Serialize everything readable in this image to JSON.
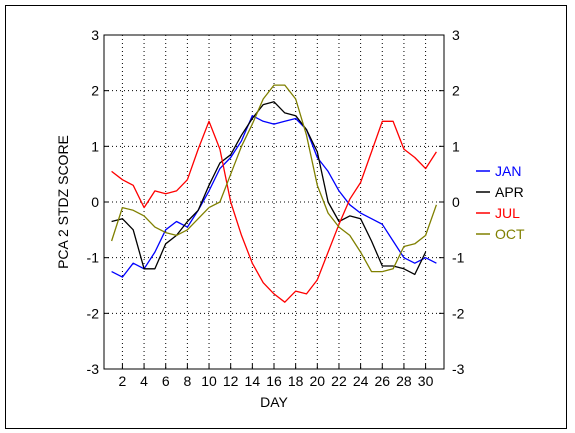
{
  "chart_data": {
    "type": "line",
    "title": "",
    "xlabel": "DAY",
    "ylabel": "PCA 2 STDZ SCORE",
    "xlim": [
      0.3,
      31.7
    ],
    "ylim": [
      -3,
      3
    ],
    "x_ticks": [
      2,
      4,
      6,
      8,
      10,
      12,
      14,
      16,
      18,
      20,
      22,
      24,
      26,
      28,
      30
    ],
    "y_ticks": [
      -3,
      -2,
      -1,
      0,
      1,
      2,
      3
    ],
    "right_axis_ticks": [
      -3,
      -2,
      -1,
      0,
      1,
      2,
      3
    ],
    "grid": true,
    "legend_position": "right",
    "x": [
      1,
      2,
      3,
      4,
      5,
      6,
      7,
      8,
      9,
      10,
      11,
      12,
      13,
      14,
      15,
      16,
      17,
      18,
      19,
      20,
      21,
      22,
      23,
      24,
      25,
      26,
      27,
      28,
      29,
      30,
      31
    ],
    "series": [
      {
        "name": "JAN",
        "color": "#0000ff",
        "values": [
          -1.25,
          -1.35,
          -1.1,
          -1.2,
          -0.9,
          -0.5,
          -0.35,
          -0.45,
          -0.15,
          0.2,
          0.6,
          0.8,
          1.1,
          1.55,
          1.45,
          1.4,
          1.45,
          1.5,
          1.3,
          0.8,
          0.55,
          0.2,
          -0.05,
          -0.2,
          -0.3,
          -0.4,
          -0.7,
          -1.0,
          -1.1,
          -1.0,
          -1.1
        ]
      },
      {
        "name": "APR",
        "color": "#000000",
        "values": [
          -0.35,
          -0.3,
          -0.5,
          -1.2,
          -1.2,
          -0.75,
          -0.6,
          -0.35,
          -0.15,
          0.3,
          0.7,
          0.85,
          1.2,
          1.5,
          1.75,
          1.8,
          1.6,
          1.55,
          1.3,
          0.9,
          0.0,
          -0.35,
          -0.25,
          -0.3,
          -0.7,
          -1.15,
          -1.15,
          -1.2,
          -1.3,
          -0.9,
          null
        ]
      },
      {
        "name": "JUL",
        "color": "#ff0000",
        "values": [
          0.55,
          0.4,
          0.3,
          -0.1,
          0.2,
          0.15,
          0.2,
          0.4,
          0.95,
          1.45,
          0.95,
          0.0,
          -0.6,
          -1.1,
          -1.45,
          -1.65,
          -1.8,
          -1.6,
          -1.65,
          -1.4,
          -0.9,
          -0.4,
          0.05,
          0.35,
          0.9,
          1.45,
          1.45,
          0.95,
          0.8,
          0.6,
          0.9
        ]
      },
      {
        "name": "OCT",
        "color": "#808000",
        "values": [
          -0.7,
          -0.1,
          -0.15,
          -0.25,
          -0.45,
          -0.55,
          -0.6,
          -0.5,
          -0.3,
          -0.1,
          0.0,
          0.5,
          1.0,
          1.4,
          1.85,
          2.1,
          2.1,
          1.85,
          1.2,
          0.3,
          -0.2,
          -0.45,
          -0.6,
          -0.9,
          -1.25,
          -1.25,
          -1.2,
          -0.8,
          -0.75,
          -0.6,
          -0.05
        ]
      }
    ]
  }
}
